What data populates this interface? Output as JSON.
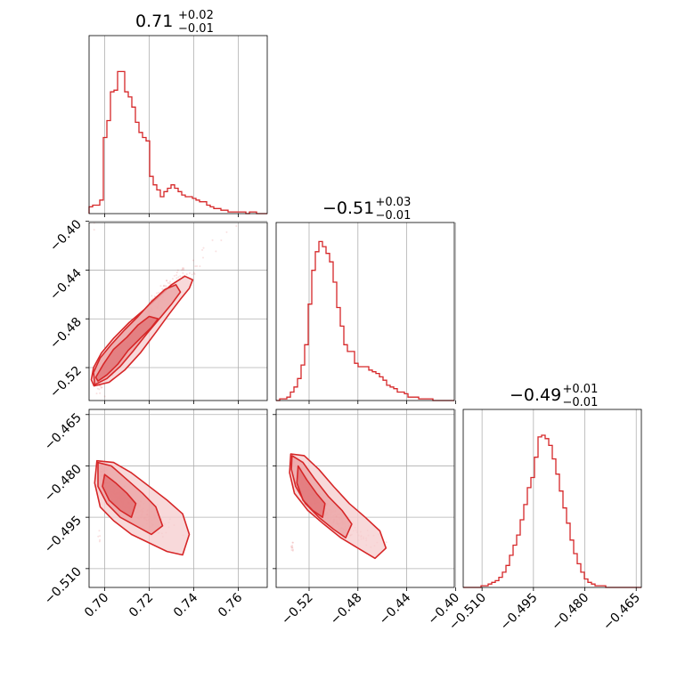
{
  "chart_data": {
    "type": "corner",
    "color": "#d62728",
    "grid": true,
    "parameters": [
      {
        "title_main": "0.71",
        "title_plus": "+0.02",
        "title_minus": "−0.01",
        "range": [
          0.693,
          0.773
        ],
        "ticks": [
          0.7,
          0.72,
          0.74,
          0.76
        ],
        "tick_labels": [
          "0.70",
          "0.72",
          "0.74",
          "0.76"
        ],
        "hist": [
          0.04,
          0.05,
          0.05,
          0.08,
          0.45,
          0.55,
          0.72,
          0.73,
          0.84,
          0.84,
          0.72,
          0.69,
          0.63,
          0.54,
          0.48,
          0.45,
          0.43,
          0.22,
          0.17,
          0.14,
          0.1,
          0.13,
          0.15,
          0.17,
          0.15,
          0.13,
          0.11,
          0.1,
          0.1,
          0.09,
          0.08,
          0.07,
          0.07,
          0.05,
          0.04,
          0.03,
          0.03,
          0.02,
          0.02,
          0.01,
          0.01,
          0.01,
          0.01,
          0.01,
          0.0,
          0.01,
          0.01,
          0.0,
          0.0,
          0.0
        ]
      },
      {
        "title_main": "−0.51",
        "title_plus": "+0.03",
        "title_minus": "−0.01",
        "range": [
          -0.547,
          -0.401
        ],
        "ticks": [
          -0.52,
          -0.48,
          -0.44,
          -0.4
        ],
        "tick_labels": [
          "−0.52",
          "−0.48",
          "−0.44",
          "−0.40"
        ],
        "hist": [
          0.0,
          0.01,
          0.01,
          0.02,
          0.05,
          0.08,
          0.13,
          0.21,
          0.33,
          0.57,
          0.77,
          0.88,
          0.94,
          0.91,
          0.87,
          0.82,
          0.7,
          0.55,
          0.44,
          0.33,
          0.29,
          0.29,
          0.22,
          0.2,
          0.2,
          0.2,
          0.18,
          0.17,
          0.16,
          0.14,
          0.12,
          0.09,
          0.08,
          0.07,
          0.05,
          0.05,
          0.04,
          0.02,
          0.02,
          0.02,
          0.01,
          0.01,
          0.01,
          0.01,
          0.0,
          0.0,
          0.0,
          0.0,
          0.0,
          0.0
        ]
      },
      {
        "title_main": "−0.49",
        "title_plus": "+0.01",
        "title_minus": "−0.01",
        "range": [
          -0.5155,
          -0.4635
        ],
        "ticks": [
          -0.51,
          -0.495,
          -0.48,
          -0.465
        ],
        "tick_labels": [
          "−0.510",
          "−0.495",
          "−0.480",
          "−0.465"
        ],
        "hist": [
          0.0,
          0.0,
          0.0,
          0.0,
          0.0,
          0.01,
          0.01,
          0.02,
          0.03,
          0.04,
          0.06,
          0.09,
          0.13,
          0.19,
          0.25,
          0.31,
          0.4,
          0.49,
          0.59,
          0.65,
          0.77,
          0.89,
          0.9,
          0.88,
          0.84,
          0.76,
          0.67,
          0.57,
          0.47,
          0.38,
          0.28,
          0.2,
          0.14,
          0.09,
          0.05,
          0.03,
          0.02,
          0.01,
          0.01,
          0.01,
          0.0,
          0.0,
          0.0,
          0.0,
          0.0,
          0.0,
          0.0,
          0.0,
          0.0,
          0.0
        ]
      }
    ],
    "pairs": [
      {
        "x_param": 0,
        "y_param": 1,
        "ridge": [
          [
            0.6962,
            -0.533
          ],
          [
            0.7,
            -0.526
          ],
          [
            0.705,
            -0.516
          ],
          [
            0.71,
            -0.503
          ],
          [
            0.715,
            -0.488
          ],
          [
            0.72,
            -0.474
          ],
          [
            0.725,
            -0.462
          ],
          [
            0.73,
            -0.452
          ],
          [
            0.736,
            -0.442
          ],
          [
            0.745,
            -0.426
          ],
          [
            0.755,
            -0.41
          ],
          [
            0.763,
            -0.4
          ]
        ],
        "contours": [
          [
            [
              0.697,
              -0.531
            ],
            [
              0.701,
              -0.526
            ],
            [
              0.706,
              -0.517
            ],
            [
              0.7105,
              -0.506
            ],
            [
              0.716,
              -0.496
            ],
            [
              0.721,
              -0.487
            ],
            [
              0.724,
              -0.48
            ],
            [
              0.72,
              -0.478
            ],
            [
              0.715,
              -0.485
            ],
            [
              0.71,
              -0.495
            ],
            [
              0.704,
              -0.505
            ],
            [
              0.6995,
              -0.517
            ],
            [
              0.696,
              -0.528
            ]
          ],
          [
            [
              0.6955,
              -0.534
            ],
            [
              0.701,
              -0.529
            ],
            [
              0.707,
              -0.519
            ],
            [
              0.713,
              -0.506
            ],
            [
              0.719,
              -0.492
            ],
            [
              0.725,
              -0.479
            ],
            [
              0.73,
              -0.468
            ],
            [
              0.734,
              -0.458
            ],
            [
              0.732,
              -0.452
            ],
            [
              0.727,
              -0.456
            ],
            [
              0.721,
              -0.466
            ],
            [
              0.715,
              -0.478
            ],
            [
              0.709,
              -0.489
            ],
            [
              0.703,
              -0.501
            ],
            [
              0.698,
              -0.512
            ],
            [
              0.695,
              -0.524
            ]
          ],
          [
            [
              0.6952,
              -0.535
            ],
            [
              0.702,
              -0.532
            ],
            [
              0.709,
              -0.522
            ],
            [
              0.716,
              -0.508
            ],
            [
              0.723,
              -0.491
            ],
            [
              0.729,
              -0.476
            ],
            [
              0.734,
              -0.464
            ],
            [
              0.738,
              -0.455
            ],
            [
              0.7395,
              -0.448
            ],
            [
              0.736,
              -0.445
            ],
            [
              0.73,
              -0.452
            ],
            [
              0.724,
              -0.462
            ],
            [
              0.718,
              -0.472
            ],
            [
              0.711,
              -0.483
            ],
            [
              0.704,
              -0.496
            ],
            [
              0.6985,
              -0.508
            ],
            [
              0.695,
              -0.52
            ],
            [
              0.694,
              -0.53
            ]
          ]
        ]
      },
      {
        "x_param": 0,
        "y_param": 2,
        "ridge": [
          [
            0.698,
            -0.482
          ],
          [
            0.703,
            -0.486
          ],
          [
            0.708,
            -0.489
          ],
          [
            0.713,
            -0.492
          ],
          [
            0.718,
            -0.494
          ],
          [
            0.723,
            -0.496
          ],
          [
            0.728,
            -0.498
          ],
          [
            0.733,
            -0.4995
          ],
          [
            0.738,
            -0.501
          ]
        ],
        "contours": [
          [
            [
              0.7,
              -0.4825
            ],
            [
              0.705,
              -0.485
            ],
            [
              0.71,
              -0.488
            ],
            [
              0.714,
              -0.491
            ],
            [
              0.712,
              -0.495
            ],
            [
              0.707,
              -0.493
            ],
            [
              0.702,
              -0.49
            ],
            [
              0.699,
              -0.486
            ]
          ],
          [
            [
              0.697,
              -0.479
            ],
            [
              0.703,
              -0.48
            ],
            [
              0.71,
              -0.484
            ],
            [
              0.717,
              -0.488
            ],
            [
              0.723,
              -0.492
            ],
            [
              0.726,
              -0.4975
            ],
            [
              0.721,
              -0.5
            ],
            [
              0.714,
              -0.4975
            ],
            [
              0.707,
              -0.495
            ],
            [
              0.701,
              -0.491
            ],
            [
              0.697,
              -0.486
            ]
          ],
          [
            [
              0.6965,
              -0.4785
            ],
            [
              0.704,
              -0.479
            ],
            [
              0.712,
              -0.482
            ],
            [
              0.72,
              -0.486
            ],
            [
              0.728,
              -0.49
            ],
            [
              0.735,
              -0.494
            ],
            [
              0.738,
              -0.5
            ],
            [
              0.735,
              -0.506
            ],
            [
              0.728,
              -0.505
            ],
            [
              0.72,
              -0.5025
            ],
            [
              0.712,
              -0.5
            ],
            [
              0.704,
              -0.496
            ],
            [
              0.698,
              -0.492
            ],
            [
              0.6955,
              -0.485
            ]
          ]
        ]
      },
      {
        "x_param": 1,
        "y_param": 2,
        "ridge": [
          [
            -0.533,
            -0.478
          ],
          [
            -0.525,
            -0.484
          ],
          [
            -0.516,
            -0.489
          ],
          [
            -0.508,
            -0.492
          ],
          [
            -0.5,
            -0.495
          ],
          [
            -0.49,
            -0.4975
          ],
          [
            -0.478,
            -0.5
          ],
          [
            -0.465,
            -0.502
          ],
          [
            -0.45,
            -0.504
          ]
        ],
        "contours": [
          [
            [
              -0.529,
              -0.48
            ],
            [
              -0.522,
              -0.484
            ],
            [
              -0.514,
              -0.488
            ],
            [
              -0.507,
              -0.491
            ],
            [
              -0.509,
              -0.495
            ],
            [
              -0.517,
              -0.493
            ],
            [
              -0.525,
              -0.49
            ],
            [
              -0.53,
              -0.485
            ]
          ],
          [
            [
              -0.534,
              -0.477
            ],
            [
              -0.525,
              -0.479
            ],
            [
              -0.515,
              -0.484
            ],
            [
              -0.504,
              -0.489
            ],
            [
              -0.493,
              -0.493
            ],
            [
              -0.485,
              -0.497
            ],
            [
              -0.49,
              -0.501
            ],
            [
              -0.5,
              -0.4985
            ],
            [
              -0.512,
              -0.495
            ],
            [
              -0.523,
              -0.491
            ],
            [
              -0.531,
              -0.486
            ],
            [
              -0.5345,
              -0.481
            ]
          ],
          [
            [
              -0.535,
              -0.4765
            ],
            [
              -0.524,
              -0.477
            ],
            [
              -0.512,
              -0.481
            ],
            [
              -0.5,
              -0.486
            ],
            [
              -0.487,
              -0.491
            ],
            [
              -0.474,
              -0.495
            ],
            [
              -0.462,
              -0.499
            ],
            [
              -0.457,
              -0.504
            ],
            [
              -0.466,
              -0.507
            ],
            [
              -0.48,
              -0.504
            ],
            [
              -0.494,
              -0.501
            ],
            [
              -0.508,
              -0.497
            ],
            [
              -0.521,
              -0.493
            ],
            [
              -0.532,
              -0.488
            ],
            [
              -0.536,
              -0.482
            ]
          ]
        ]
      }
    ]
  }
}
